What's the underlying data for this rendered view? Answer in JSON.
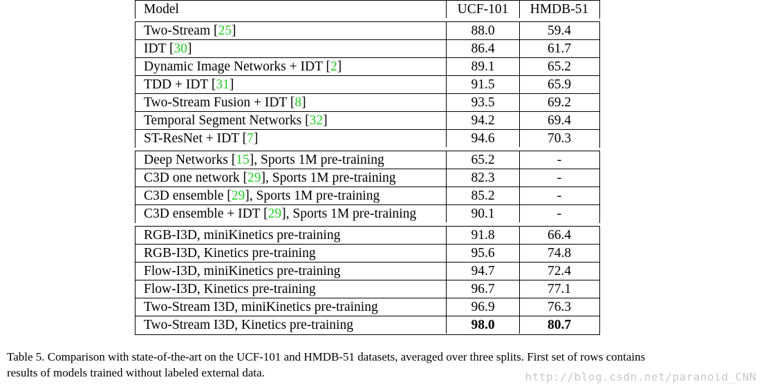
{
  "table": {
    "header": {
      "model": "Model",
      "ucf": "UCF-101",
      "hmdb": "HMDB-51"
    },
    "sections": [
      {
        "rows": [
          {
            "model": "Two-Stream ",
            "cite": "25",
            "rest": "",
            "ucf": "88.0",
            "hmdb": "59.4"
          },
          {
            "model": "IDT ",
            "cite": "30",
            "rest": "",
            "ucf": "86.4",
            "hmdb": "61.7"
          },
          {
            "model": "Dynamic Image Networks + IDT ",
            "cite": "2",
            "rest": "",
            "ucf": "89.1",
            "hmdb": "65.2"
          },
          {
            "model": "TDD + IDT ",
            "cite": "31",
            "rest": "",
            "ucf": "91.5",
            "hmdb": "65.9"
          },
          {
            "model": "Two-Stream Fusion + IDT ",
            "cite": "8",
            "rest": "",
            "ucf": "93.5",
            "hmdb": "69.2"
          },
          {
            "model": "Temporal Segment Networks ",
            "cite": "32",
            "rest": "",
            "ucf": "94.2",
            "hmdb": "69.4"
          },
          {
            "model": "ST-ResNet + IDT ",
            "cite": "7",
            "rest": "",
            "ucf": "94.6",
            "hmdb": "70.3"
          }
        ]
      },
      {
        "rows": [
          {
            "model": "Deep Networks ",
            "cite": "15",
            "rest": ", Sports 1M pre-training",
            "ucf": "65.2",
            "hmdb": "-"
          },
          {
            "model": "C3D one network ",
            "cite": "29",
            "rest": ", Sports 1M pre-training",
            "ucf": "82.3",
            "hmdb": "-"
          },
          {
            "model": "C3D ensemble ",
            "cite": "29",
            "rest": ", Sports 1M pre-training",
            "ucf": "85.2",
            "hmdb": "-"
          },
          {
            "model": "C3D ensemble + IDT ",
            "cite": "29",
            "rest": ", Sports 1M pre-training",
            "ucf": "90.1",
            "hmdb": "-"
          }
        ]
      },
      {
        "rows": [
          {
            "model": "RGB-I3D, miniKinetics pre-training",
            "cite": "",
            "rest": "",
            "ucf": "91.8",
            "hmdb": "66.4"
          },
          {
            "model": "RGB-I3D, Kinetics pre-training",
            "cite": "",
            "rest": "",
            "ucf": "95.6",
            "hmdb": "74.8"
          },
          {
            "model": "Flow-I3D, miniKinetics pre-training",
            "cite": "",
            "rest": "",
            "ucf": "94.7",
            "hmdb": "72.4"
          },
          {
            "model": "Flow-I3D, Kinetics pre-training",
            "cite": "",
            "rest": "",
            "ucf": "96.7",
            "hmdb": "77.1"
          },
          {
            "model": "Two-Stream I3D, miniKinetics pre-training",
            "cite": "",
            "rest": "",
            "ucf": "96.9",
            "hmdb": "76.3"
          },
          {
            "model": "Two-Stream I3D, Kinetics pre-training",
            "cite": "",
            "rest": "",
            "ucf": "98.0",
            "hmdb": "80.7",
            "bold": true
          }
        ]
      }
    ]
  },
  "caption": {
    "line1": "Table 5.  Comparison with state-of-the-art on the UCF-101 and HMDB-51 datasets, averaged over three splits. First set of rows contains",
    "line2": "results of models trained without labeled external data."
  },
  "watermark": "http://blog.csdn.net/paranoid_CNN",
  "colors": {
    "citation": "#22cc22",
    "text": "#000000",
    "watermark": "#c8c8c8"
  }
}
